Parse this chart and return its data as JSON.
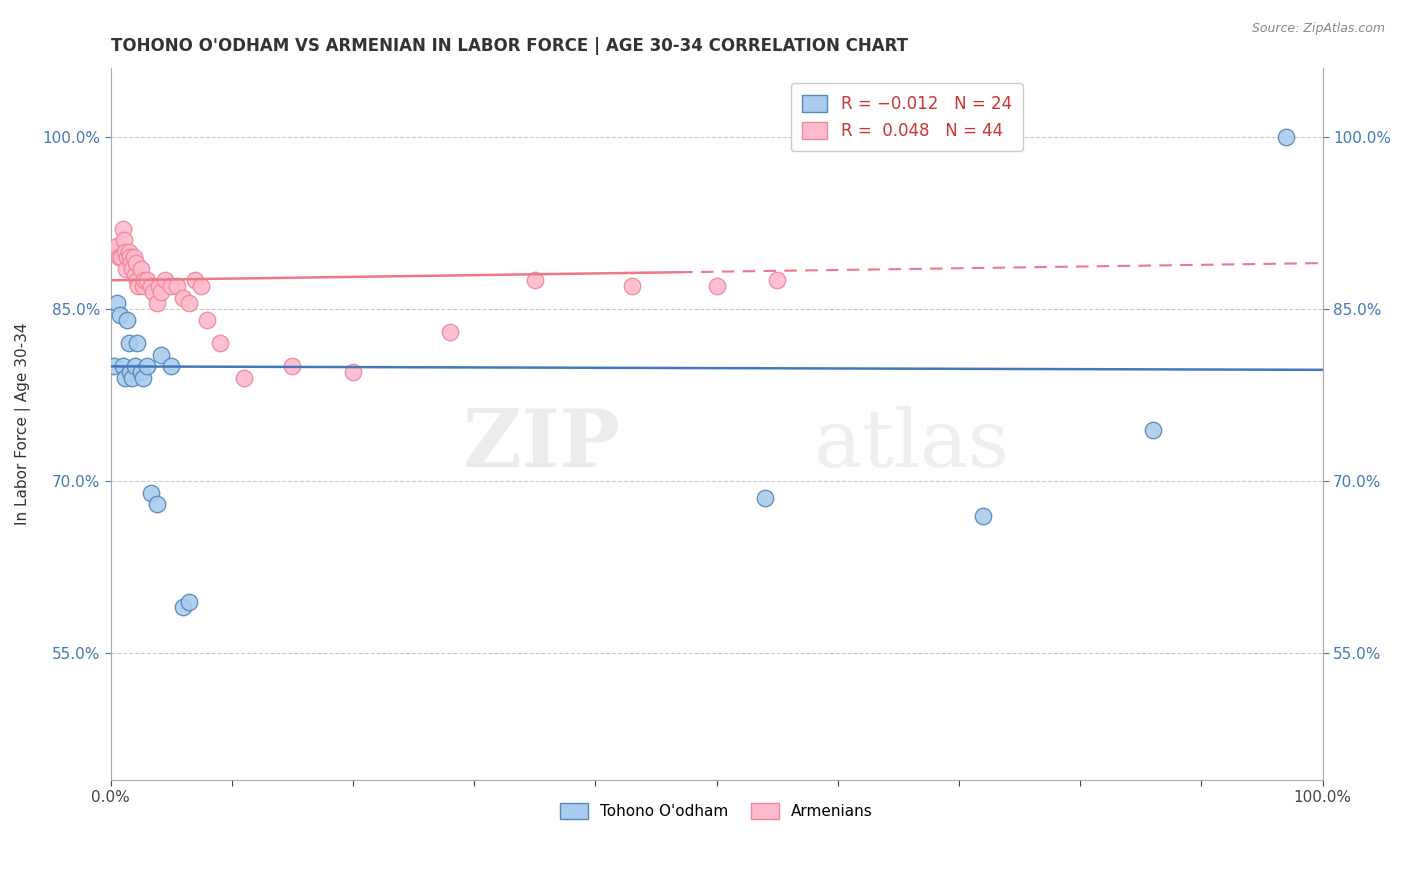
{
  "title": "TOHONO O'ODHAM VS ARMENIAN IN LABOR FORCE | AGE 30-34 CORRELATION CHART",
  "source": "Source: ZipAtlas.com",
  "ylabel": "In Labor Force | Age 30-34",
  "ytick_labels": [
    "55.0%",
    "70.0%",
    "85.0%",
    "100.0%"
  ],
  "ytick_values": [
    0.55,
    0.7,
    0.85,
    1.0
  ],
  "xlim": [
    0.0,
    1.0
  ],
  "ylim": [
    0.44,
    1.06
  ],
  "legend_r_blue": "-0.012",
  "legend_n_blue": "24",
  "legend_r_pink": "0.048",
  "legend_n_pink": "44",
  "blue_fill": "#AACCEE",
  "blue_edge": "#5588BB",
  "pink_fill": "#FFBBCC",
  "pink_edge": "#EE8899",
  "blue_line": "#4477BB",
  "pink_line": "#EE7788",
  "watermark_top": "ZIP",
  "watermark_bot": "atlas",
  "tohono_x": [
    0.003,
    0.005,
    0.008,
    0.01,
    0.012,
    0.014,
    0.015,
    0.016,
    0.018,
    0.02,
    0.022,
    0.025,
    0.027,
    0.03,
    0.033,
    0.038,
    0.042,
    0.05,
    0.06,
    0.065,
    0.54,
    0.72,
    0.86,
    0.97
  ],
  "tohono_y": [
    0.8,
    0.855,
    0.845,
    0.8,
    0.79,
    0.84,
    0.82,
    0.795,
    0.79,
    0.8,
    0.82,
    0.795,
    0.79,
    0.8,
    0.69,
    0.68,
    0.81,
    0.8,
    0.59,
    0.595,
    0.685,
    0.67,
    0.745,
    1.0
  ],
  "armenian_x": [
    0.003,
    0.005,
    0.007,
    0.009,
    0.01,
    0.011,
    0.012,
    0.013,
    0.014,
    0.015,
    0.016,
    0.017,
    0.018,
    0.019,
    0.02,
    0.021,
    0.022,
    0.023,
    0.025,
    0.027,
    0.028,
    0.03,
    0.033,
    0.035,
    0.038,
    0.04,
    0.042,
    0.045,
    0.05,
    0.055,
    0.06,
    0.065,
    0.07,
    0.075,
    0.08,
    0.09,
    0.11,
    0.15,
    0.2,
    0.28,
    0.35,
    0.43,
    0.5,
    0.55
  ],
  "armenian_y": [
    0.9,
    0.905,
    0.895,
    0.895,
    0.92,
    0.91,
    0.9,
    0.885,
    0.895,
    0.9,
    0.895,
    0.89,
    0.885,
    0.895,
    0.88,
    0.89,
    0.875,
    0.87,
    0.885,
    0.87,
    0.875,
    0.875,
    0.87,
    0.865,
    0.855,
    0.87,
    0.865,
    0.875,
    0.87,
    0.87,
    0.86,
    0.855,
    0.875,
    0.87,
    0.84,
    0.82,
    0.79,
    0.8,
    0.795,
    0.83,
    0.875,
    0.87,
    0.87,
    0.875
  ],
  "blue_trend_start": 0.8,
  "blue_trend_end": 0.797,
  "pink_trend_start": 0.875,
  "pink_trend_end": 0.89
}
